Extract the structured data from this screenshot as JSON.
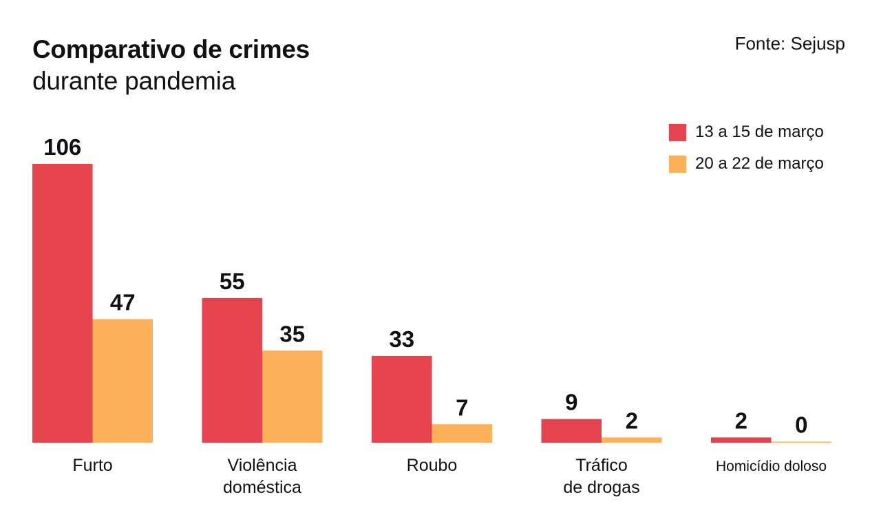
{
  "header": {
    "title": "Comparativo de crimes",
    "subtitle": "durante pandemia",
    "source": "Fonte: Sejusp"
  },
  "legend": {
    "items": [
      {
        "label": "13 a 15 de março",
        "color": "#e5444f"
      },
      {
        "label": "20 a 22 de março",
        "color": "#fcb05a"
      }
    ]
  },
  "chart_data": {
    "type": "bar",
    "title": "Comparativo de crimes",
    "subtitle": "durante pandemia",
    "categories": [
      [
        "Furto"
      ],
      [
        "Violência",
        "doméstica"
      ],
      [
        "Roubo"
      ],
      [
        "Tráfico",
        "de drogas"
      ],
      [
        "Homicídio doloso"
      ]
    ],
    "series": [
      {
        "name": "13 a 15 de março",
        "values": [
          106,
          55,
          33,
          9,
          2
        ],
        "color": "#e5444f"
      },
      {
        "name": "20 a 22 de março",
        "values": [
          47,
          35,
          7,
          2,
          0
        ],
        "color": "#fcb05a"
      }
    ],
    "xlabel": "",
    "ylabel": "",
    "grid": false,
    "legend_position": "top-right",
    "data_labels": true
  }
}
